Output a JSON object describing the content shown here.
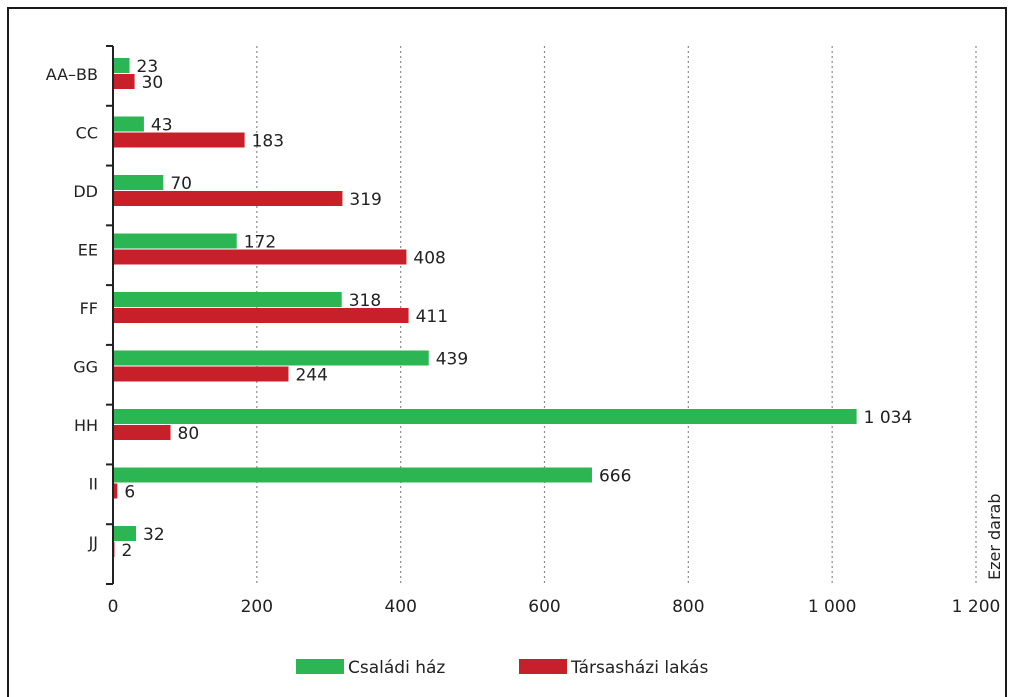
{
  "chart_data": {
    "type": "bar",
    "orientation": "horizontal",
    "categories": [
      "AA–BB",
      "CC",
      "DD",
      "EE",
      "FF",
      "GG",
      "HH",
      "II",
      "JJ"
    ],
    "series": [
      {
        "name": "Családi ház",
        "color": "#2bb553",
        "values": [
          23,
          43,
          70,
          172,
          318,
          439,
          1034,
          666,
          32
        ],
        "value_labels": [
          "23",
          "43",
          "70",
          "172",
          "318",
          "439",
          "1 034",
          "666",
          "32"
        ]
      },
      {
        "name": "Társasházi lakás",
        "color": "#c8202b",
        "values": [
          30,
          183,
          319,
          408,
          411,
          244,
          80,
          6,
          2
        ],
        "value_labels": [
          "30",
          "183",
          "319",
          "408",
          "411",
          "244",
          "80",
          "6",
          "2"
        ]
      }
    ],
    "xlim": [
      0,
      1200
    ],
    "x_ticks": [
      0,
      200,
      400,
      600,
      800,
      1000,
      1200
    ],
    "x_tick_labels": [
      "0",
      "200",
      "400",
      "600",
      "800",
      "1 000",
      "1 200"
    ],
    "unit_label": "Ezer darab",
    "grid": "vertical dotted",
    "legend_position": "bottom"
  }
}
